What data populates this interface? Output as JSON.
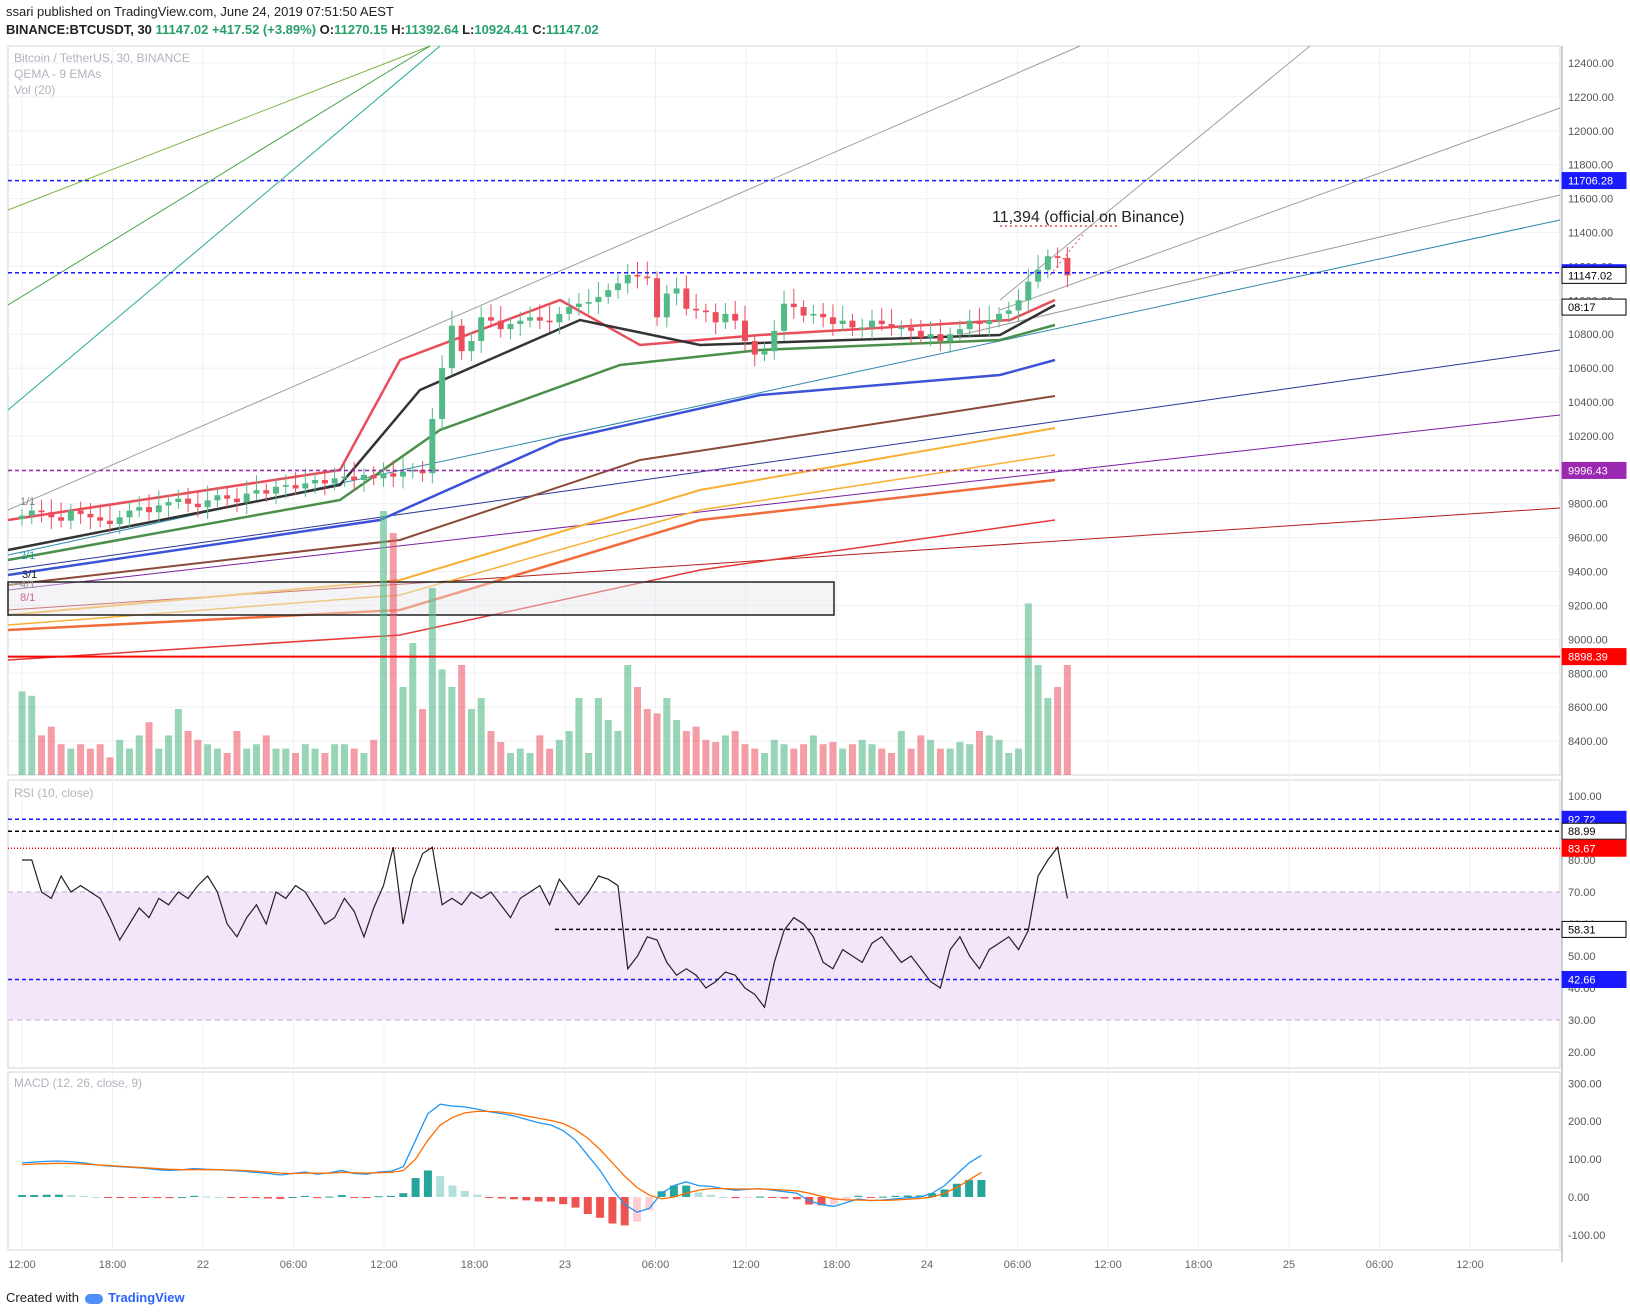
{
  "header": {
    "line1": "ssari published on TradingView.com, June 24, 2019 07:51:50 AEST",
    "symbol": "BINANCE:BTCUSDT, 30",
    "last": "11147.02",
    "change": "+417.52 (+3.89%)",
    "o_label": "O:",
    "o": "11270.15",
    "h_label": "H:",
    "h": "11392.64",
    "l_label": "L:",
    "l": "10924.41",
    "c_label": "C:",
    "c": "11147.02"
  },
  "legend": {
    "title": "Bitcoin / TetherUS, 30, BINANCE",
    "study1": "QEMA - 9 EMAs",
    "study2": "Vol (20)"
  },
  "annotation": "11,394 (official on Binance)",
  "fib_labels": [
    "1/1",
    "2/1",
    "3/1",
    "4/1",
    "8/1"
  ],
  "footer": {
    "prefix": "Created with",
    "brand": "TradingView"
  },
  "colors": {
    "up": "#53b987",
    "down": "#eb4d5c",
    "ema_fast": "#e84e5a",
    "ema_black": "#333333",
    "ema_green": "#4a8f4a",
    "ema_blue": "#3b52d9",
    "ema_brown": "#8b4a3a",
    "ema_orange": "#f8b034",
    "ema_orange2": "#f26b3a",
    "ema_red": "#e53935",
    "level_blue": "#1a1aff",
    "level_purple": "#9c27b0",
    "level_red": "#ff0000",
    "rsi_band": "#f3e5fa",
    "macd_line": "#2196f3",
    "signal_line": "#ff6d00"
  },
  "chart_data": [
    {
      "type": "candlestick",
      "title": "Bitcoin / TetherUS, 30, BINANCE",
      "ylim": [
        8200,
        12500
      ],
      "y_ticks": [
        8400,
        8600,
        8800,
        9000,
        9200,
        9400,
        9600,
        9800,
        10000,
        10200,
        10400,
        10600,
        10800,
        11000,
        11200,
        11400,
        11600,
        11800,
        12000,
        12200,
        12400
      ],
      "x_ticks": [
        "12:00",
        "18:00",
        "22",
        "06:00",
        "12:00",
        "18:00",
        "23",
        "06:00",
        "12:00",
        "18:00",
        "24",
        "06:00",
        "12:00",
        "18:00",
        "25",
        "06:00",
        "12:00"
      ],
      "price_levels": [
        {
          "label": "11706.28",
          "value": 11706.28,
          "color": "#1a1aff",
          "style": "dashed"
        },
        {
          "label": "11162.57",
          "value": 11162.57,
          "color": "#1a1aff",
          "style": "dashed"
        },
        {
          "label": "11147.02",
          "value": 11147.02,
          "color": "#000000",
          "style": "last"
        },
        {
          "label": "08:17",
          "value": 10960,
          "color": "#000000",
          "style": "countdown"
        },
        {
          "label": "9996.43",
          "value": 9996.43,
          "color": "#9c27b0",
          "style": "dashed"
        },
        {
          "label": "8898.39",
          "value": 8898.39,
          "color": "#ff0000",
          "style": "solid"
        }
      ],
      "close_path": [
        9730,
        9760,
        9750,
        9720,
        9700,
        9760,
        9740,
        9720,
        9700,
        9680,
        9720,
        9760,
        9780,
        9750,
        9790,
        9810,
        9830,
        9800,
        9780,
        9820,
        9850,
        9830,
        9810,
        9860,
        9880,
        9860,
        9900,
        9910,
        9890,
        9920,
        9940,
        9920,
        9950,
        9960,
        9940,
        9970,
        9950,
        9980,
        9960,
        9990,
        10000,
        9980,
        10300,
        10600,
        10850,
        10700,
        10760,
        10900,
        10880,
        10830,
        10860,
        10880,
        10900,
        10880,
        10870,
        10920,
        10960,
        10980,
        10990,
        11020,
        11060,
        11100,
        11150,
        11140,
        11130,
        10900,
        11040,
        11070,
        10950,
        10940,
        10930,
        10870,
        10920,
        10880,
        10760,
        10680,
        10700,
        10820,
        10980,
        10960,
        10910,
        10920,
        10900,
        10860,
        10880,
        10840,
        10840,
        10880,
        10860,
        10840,
        10840,
        10820,
        10780,
        10800,
        10760,
        10800,
        10830,
        10880,
        10860,
        10880,
        10920,
        10940,
        11000,
        11110,
        11180,
        11260,
        11250,
        11147
      ]
    },
    {
      "type": "bar",
      "title": "Vol (20)",
      "note": "volume bars, relative heights",
      "values": [
        38,
        36,
        18,
        22,
        14,
        12,
        14,
        12,
        14,
        8,
        16,
        12,
        18,
        24,
        12,
        18,
        30,
        20,
        16,
        14,
        12,
        10,
        20,
        12,
        14,
        18,
        12,
        12,
        10,
        14,
        12,
        10,
        14,
        14,
        12,
        10,
        16,
        120,
        110,
        40,
        60,
        30,
        85,
        48,
        40,
        50,
        30,
        35,
        20,
        15,
        10,
        12,
        10,
        18,
        12,
        16,
        20,
        35,
        10,
        35,
        25,
        20,
        50,
        40,
        30,
        28,
        35,
        25,
        20,
        22,
        16,
        15,
        18,
        20,
        14,
        12,
        10,
        16,
        14,
        12,
        14,
        18,
        14,
        15,
        12,
        14,
        16,
        14,
        12,
        10,
        20,
        12,
        18,
        16,
        12,
        12,
        15,
        14,
        20,
        18,
        16,
        10,
        12,
        78,
        50,
        35,
        40,
        50
      ]
    },
    {
      "type": "line",
      "title": "RSI (10, close)",
      "ylim": [
        15,
        105
      ],
      "y_ticks": [
        20,
        30,
        40,
        50,
        60,
        70,
        80,
        90,
        100
      ],
      "band": [
        30,
        70
      ],
      "levels": [
        {
          "label": "92.72",
          "value": 92.72,
          "color": "#1a1aff"
        },
        {
          "label": "88.99",
          "value": 88.99,
          "color": "#000000"
        },
        {
          "label": "83.67",
          "value": 83.67,
          "color": "#ff0000"
        },
        {
          "label": "58.31",
          "value": 58.31,
          "color": "#000000"
        },
        {
          "label": "42.66",
          "value": 42.66,
          "color": "#1a1aff"
        }
      ],
      "values": [
        80,
        80,
        70,
        68,
        75,
        70,
        72,
        70,
        68,
        62,
        55,
        60,
        65,
        62,
        68,
        66,
        70,
        68,
        72,
        75,
        70,
        60,
        56,
        62,
        66,
        60,
        70,
        68,
        72,
        70,
        65,
        60,
        62,
        68,
        64,
        56,
        65,
        72,
        84,
        60,
        74,
        82,
        84,
        66,
        68,
        66,
        70,
        68,
        70,
        66,
        62,
        68,
        70,
        72,
        66,
        74,
        70,
        66,
        70,
        75,
        74,
        72,
        46,
        50,
        56,
        55,
        48,
        44,
        46,
        44,
        40,
        42,
        45,
        44,
        40,
        38,
        34,
        48,
        58,
        62,
        60,
        56,
        48,
        46,
        52,
        50,
        48,
        54,
        56,
        52,
        48,
        50,
        46,
        42,
        40,
        52,
        56,
        50,
        46,
        52,
        54,
        56,
        52,
        58,
        75,
        80,
        84,
        68
      ]
    },
    {
      "type": "line",
      "title": "MACD (12, 26, close, 9)",
      "ylim": [
        -140,
        330
      ],
      "y_ticks": [
        -100,
        0,
        100,
        200,
        300
      ],
      "series": [
        {
          "name": "MACD",
          "values": [
            90,
            92,
            94,
            95,
            93,
            90,
            85,
            82,
            80,
            78,
            76,
            72,
            70,
            72,
            75,
            73,
            72,
            70,
            68,
            65,
            62,
            58,
            62,
            66,
            60,
            64,
            70,
            62,
            60,
            66,
            68,
            80,
            150,
            220,
            245,
            240,
            238,
            232,
            225,
            220,
            214,
            205,
            196,
            190,
            175,
            150,
            110,
            70,
            20,
            -20,
            -40,
            -30,
            10,
            30,
            40,
            30,
            28,
            22,
            18,
            20,
            22,
            18,
            14,
            10,
            -10,
            -20,
            -25,
            -15,
            -5,
            -10,
            -8,
            -5,
            -2,
            0,
            10,
            30,
            60,
            90,
            110
          ]
        },
        {
          "name": "Signal",
          "values": [
            85,
            87,
            88,
            89,
            88,
            87,
            85,
            83,
            81,
            79,
            77,
            75,
            73,
            72,
            72,
            72,
            72,
            71,
            70,
            68,
            66,
            63,
            62,
            63,
            63,
            63,
            65,
            64,
            63,
            64,
            65,
            70,
            100,
            150,
            190,
            210,
            222,
            226,
            226,
            224,
            220,
            214,
            208,
            202,
            194,
            178,
            155,
            125,
            90,
            55,
            25,
            5,
            -5,
            0,
            10,
            18,
            22,
            22,
            21,
            21,
            21,
            20,
            18,
            16,
            10,
            2,
            -5,
            -8,
            -8,
            -9,
            -9,
            -8,
            -6,
            -4,
            0,
            10,
            25,
            45,
            65
          ]
        }
      ],
      "histogram": [
        5,
        5,
        6,
        6,
        5,
        3,
        0,
        -1,
        -1,
        -1,
        -1,
        -3,
        -3,
        0,
        3,
        1,
        0,
        -1,
        -2,
        -3,
        -4,
        -5,
        0,
        3,
        -3,
        1,
        5,
        -2,
        -3,
        2,
        3,
        10,
        50,
        70,
        55,
        30,
        16,
        6,
        -1,
        -4,
        -6,
        -9,
        -12,
        -12,
        -19,
        -28,
        -45,
        -55,
        -70,
        -75,
        -65,
        -35,
        15,
        30,
        30,
        12,
        6,
        0,
        -3,
        -1,
        1,
        -2,
        -4,
        -6,
        -20,
        -22,
        -20,
        -7,
        3,
        -1,
        1,
        3,
        4,
        4,
        10,
        20,
        35,
        45,
        45
      ]
    }
  ]
}
